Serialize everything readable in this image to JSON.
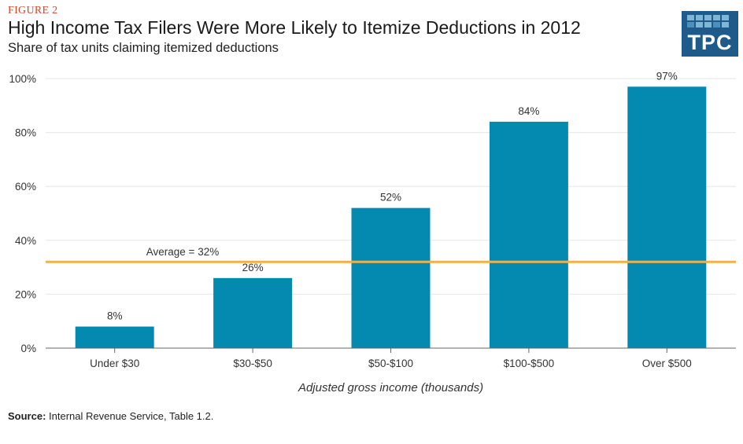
{
  "header": {
    "figure_label": "FIGURE 2",
    "title": "High Income Tax Filers Were More Likely to Itemize Deductions in 2012",
    "subtitle": "Share of tax units claiming itemized deductions"
  },
  "logo": {
    "text": "TPC"
  },
  "footer": {
    "source_label": "Source:",
    "source_text": "Internal Revenue Service, Table 1.2."
  },
  "colors": {
    "bar": "#0489b1",
    "average_line": "#f0b04a",
    "grid": "#e6e6e6",
    "axis": "#666666"
  },
  "chart_data": {
    "type": "bar",
    "categories": [
      "Under $30",
      "$30-$50",
      "$50-$100",
      "$100-$500",
      "Over $500"
    ],
    "values": [
      8,
      26,
      52,
      84,
      97
    ],
    "data_labels": [
      "8%",
      "26%",
      "52%",
      "84%",
      "97%"
    ],
    "title": "High Income Tax Filers Were More Likely to Itemize Deductions in 2012",
    "subtitle": "Share of tax units claiming itemized deductions",
    "xlabel": "Adjusted gross income (thousands)",
    "ylabel": "",
    "ylim": [
      0,
      100
    ],
    "yticks": [
      0,
      20,
      40,
      60,
      80,
      100
    ],
    "ytick_labels": [
      "0%",
      "20%",
      "40%",
      "60%",
      "80%",
      "100%"
    ],
    "grid": true,
    "reference_line": {
      "value": 32,
      "label": "Average = 32%"
    }
  }
}
